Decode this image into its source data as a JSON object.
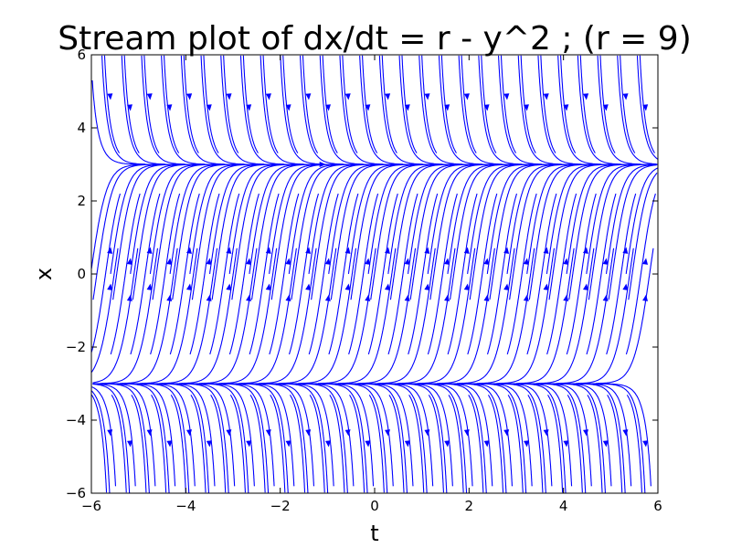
{
  "chart_data": {
    "type": "streamplot",
    "title": "Stream plot of dx/dt = r - y^2 ; (r = 9)",
    "xlabel": "t",
    "ylabel": "x",
    "xlim": [
      -6,
      6
    ],
    "ylim": [
      -6,
      6
    ],
    "xticks": [
      -6,
      -4,
      -2,
      0,
      2,
      4,
      6
    ],
    "yticks": [
      -6,
      -4,
      -2,
      0,
      2,
      4,
      6
    ],
    "xtick_labels": [
      "−6",
      "−4",
      "−2",
      "0",
      "2",
      "4",
      "6"
    ],
    "ytick_labels": [
      "−6",
      "−4",
      "−2",
      "0",
      "2",
      "4",
      "6"
    ],
    "parameter_r": 9,
    "fixed_points": [
      3,
      -3
    ],
    "grid": false,
    "line_color": "#0000ff"
  }
}
